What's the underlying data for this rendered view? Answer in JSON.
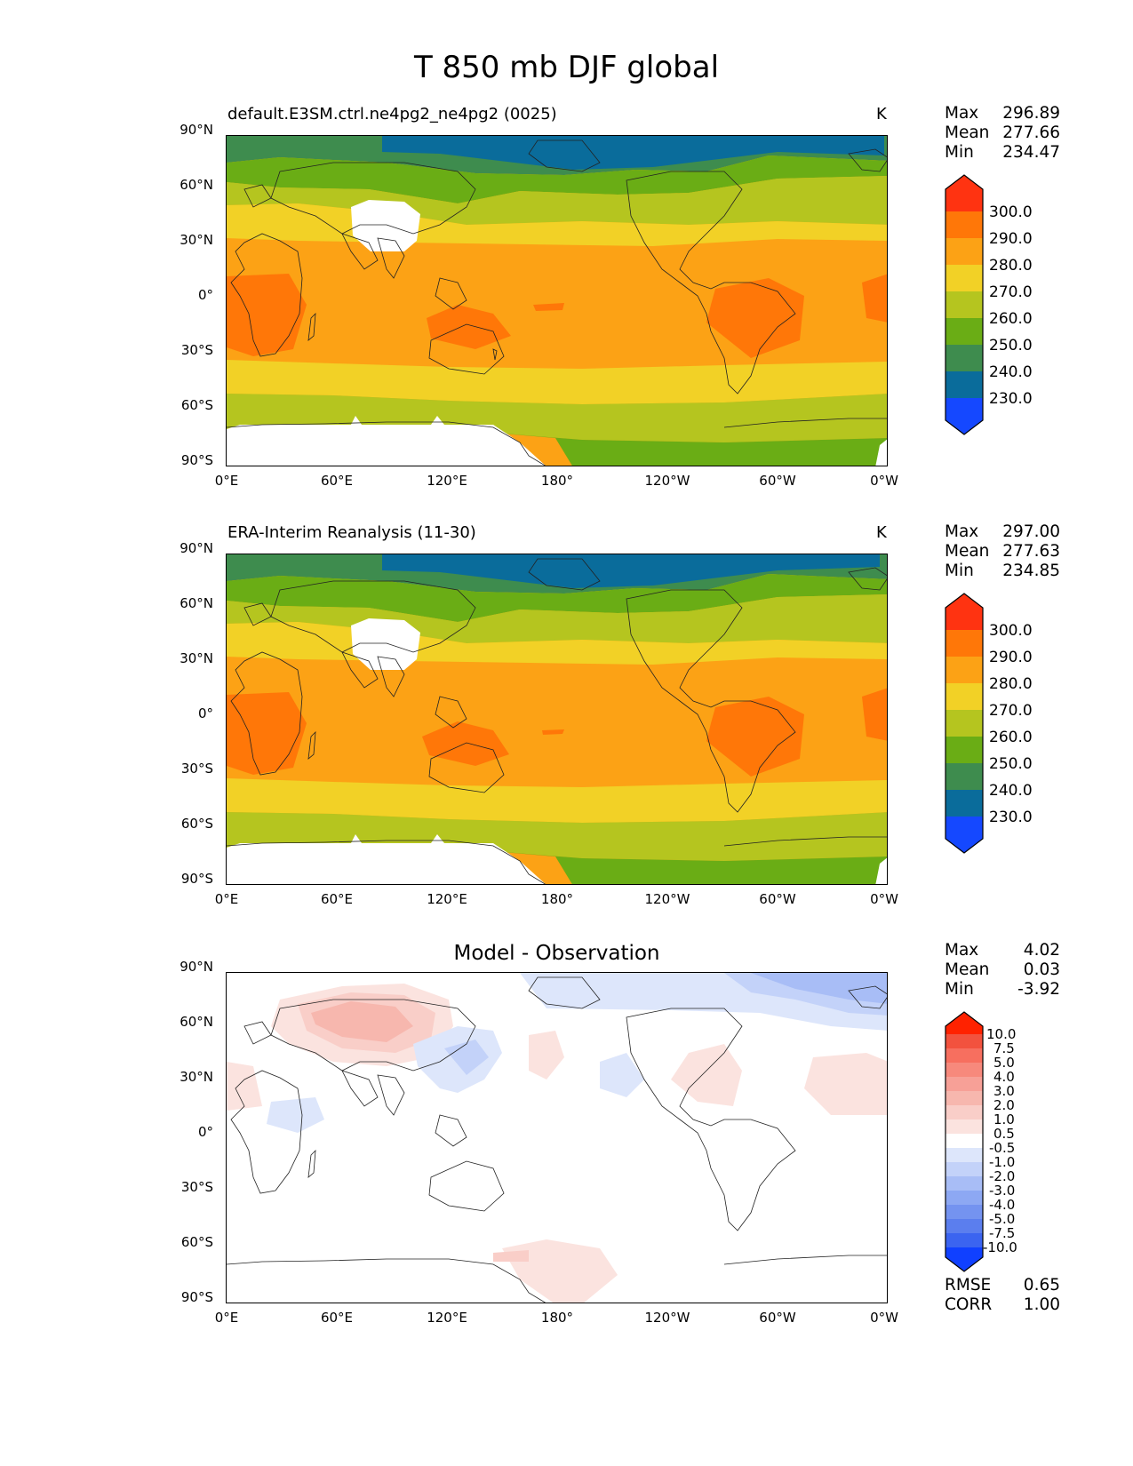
{
  "title": "T 850 mb DJF global",
  "axes": {
    "y_ticks": [
      "90°N",
      "60°N",
      "30°N",
      "0°",
      "30°S",
      "60°S",
      "90°S"
    ],
    "x_ticks": [
      "0°E",
      "60°E",
      "120°E",
      "180°",
      "120°W",
      "60°W",
      "0°W"
    ]
  },
  "panels": [
    {
      "title_left": "default.E3SM.ctrl.ne4pg2_ne4pg2 (0025)",
      "title_right": "K",
      "stats": [
        {
          "label": "Max",
          "value": "296.89"
        },
        {
          "label": "Mean",
          "value": "277.66"
        },
        {
          "label": "Min",
          "value": "234.47"
        }
      ],
      "colorbar_labels": [
        "300.0",
        "290.0",
        "280.0",
        "270.0",
        "260.0",
        "250.0",
        "240.0",
        "230.0"
      ]
    },
    {
      "title_left": "ERA-Interim Reanalysis (11-30)",
      "title_right": "K",
      "stats": [
        {
          "label": "Max",
          "value": "297.00"
        },
        {
          "label": "Mean",
          "value": "277.63"
        },
        {
          "label": "Min",
          "value": "234.85"
        }
      ],
      "colorbar_labels": [
        "300.0",
        "290.0",
        "280.0",
        "270.0",
        "260.0",
        "250.0",
        "240.0",
        "230.0"
      ]
    },
    {
      "title_center": "Model - Observation",
      "stats": [
        {
          "label": "Max",
          "value": "4.02"
        },
        {
          "label": "Mean",
          "value": "0.03"
        },
        {
          "label": "Min",
          "value": "-3.92"
        }
      ],
      "colorbar_labels": [
        "10.0",
        "7.5",
        "5.0",
        "4.0",
        "3.0",
        "2.0",
        "1.0",
        "0.5",
        "-0.5",
        "-1.0",
        "-2.0",
        "-3.0",
        "-4.0",
        "-5.0",
        "-7.5",
        "-10.0"
      ],
      "metrics": [
        {
          "label": "RMSE",
          "value": "0.65"
        },
        {
          "label": "CORR",
          "value": "1.00"
        }
      ]
    }
  ],
  "colors": {
    "abs_levels": [
      "#ff3311",
      "#ff7708",
      "#fca215",
      "#f2d126",
      "#b5c51f",
      "#6aad15",
      "#3e8c4e",
      "#0a6c9b",
      "#1548ff"
    ],
    "diff_levels": [
      "#ff2200",
      "#f2523e",
      "#f76f5f",
      "#f7897c",
      "#f7a097",
      "#f7b7ae",
      "#f9cec8",
      "#fbe3df",
      "#ffffff",
      "#dde6fb",
      "#c3d2f9",
      "#a8bdf6",
      "#8da8f3",
      "#7493f0",
      "#5b7eee",
      "#3b64f0",
      "#1040ff"
    ]
  }
}
